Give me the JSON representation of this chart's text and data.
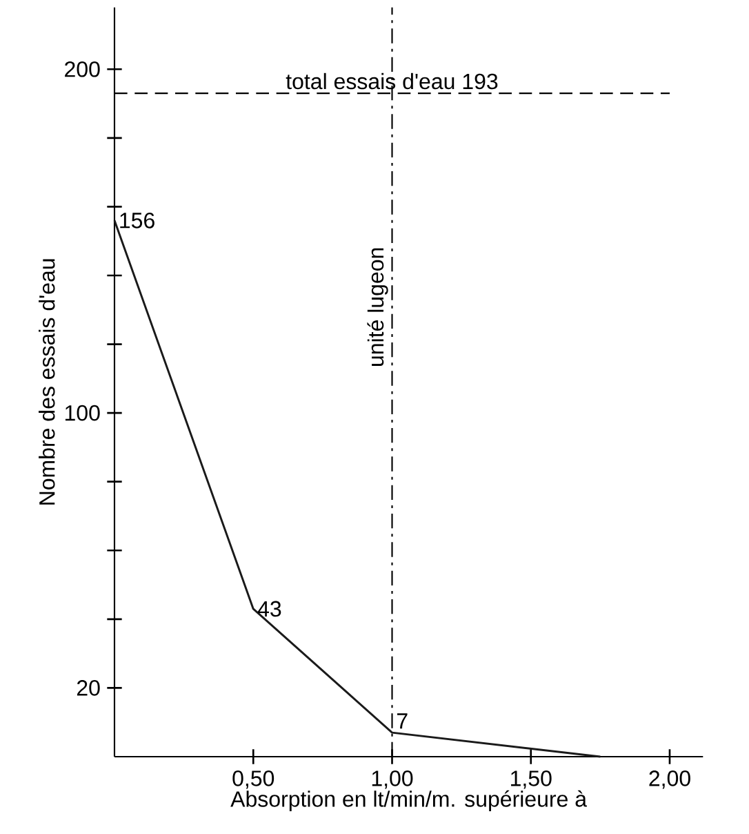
{
  "chart_data": {
    "type": "line",
    "xlabel": "Absorption en lt/min/m. supérieure à",
    "ylabel": "Nombre des essais d'eau",
    "x": [
      0,
      0.5,
      1.0,
      1.75
    ],
    "values": [
      156,
      43,
      7,
      0
    ],
    "value_labels": [
      "156",
      "43",
      "7",
      null
    ],
    "color": "#1a1a1a",
    "xlim": [
      0,
      2.12
    ],
    "ylim": [
      0,
      218
    ],
    "xticks": [
      {
        "value": 0.5,
        "label": "0,50"
      },
      {
        "value": 1.0,
        "label": "1,00"
      },
      {
        "value": 1.5,
        "label": "1,50"
      },
      {
        "value": 2.0,
        "label": "2,00"
      }
    ],
    "yticks": [
      20,
      {
        "value": 40,
        "label": null
      },
      {
        "value": 60,
        "label": null
      },
      {
        "value": 80,
        "label": null
      },
      100,
      {
        "value": 120,
        "label": null
      },
      {
        "value": 140,
        "label": null
      },
      {
        "value": 160,
        "label": null
      },
      {
        "value": 180,
        "label": null
      },
      200
    ],
    "ref_lines": [
      {
        "axis": "y",
        "value": 193,
        "label": "total essais d'eau 193",
        "line_style": "dashed"
      },
      {
        "axis": "x",
        "value": 1.0,
        "label": "unité lugeon",
        "line_style": "dashdot"
      }
    ],
    "grid": false,
    "marker": "none",
    "line_style": "solid"
  }
}
